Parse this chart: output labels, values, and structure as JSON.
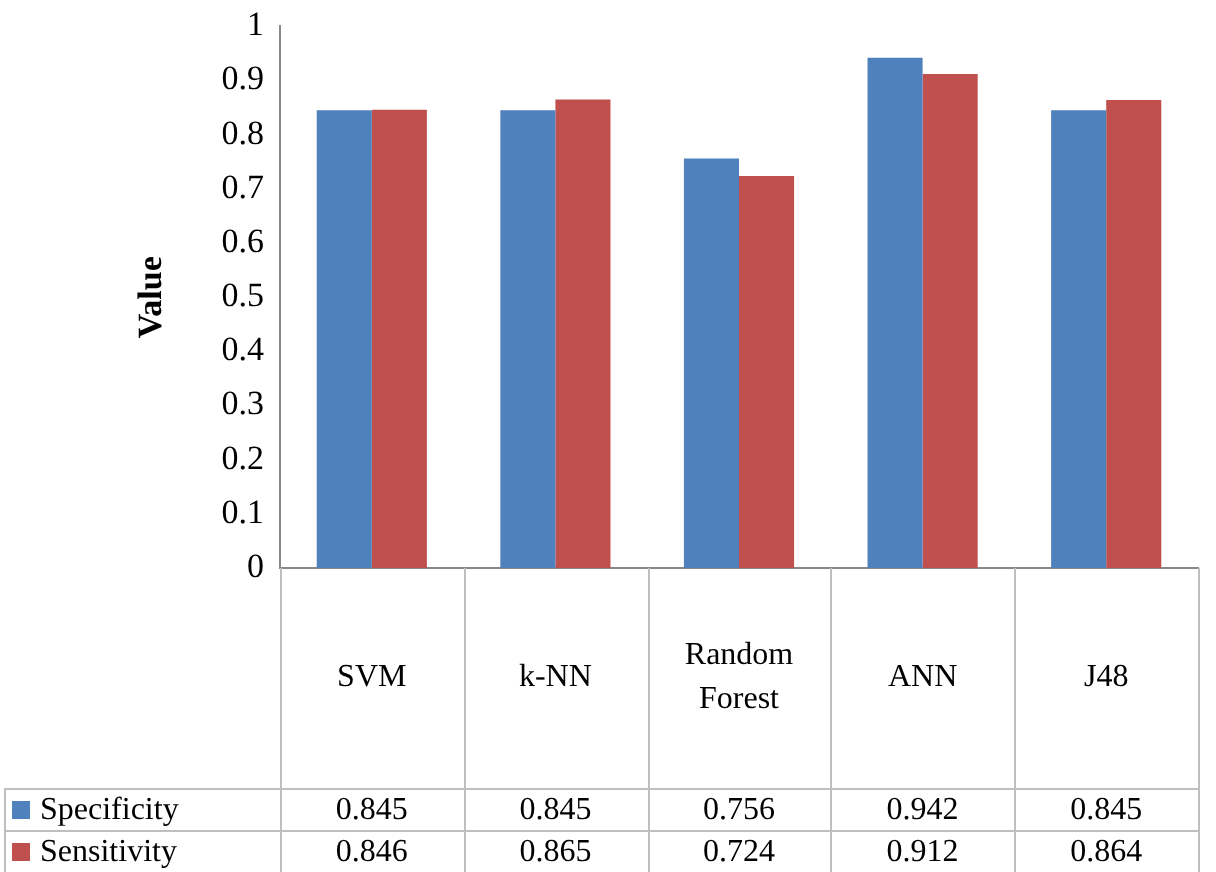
{
  "chart_data": {
    "type": "bar",
    "ylabel": "Value",
    "categories": [
      "SVM",
      "k-NN",
      "Random Forest",
      "ANN",
      "J48"
    ],
    "series": [
      {
        "name": "Specificity",
        "color": "#4f81bd",
        "values": [
          0.845,
          0.845,
          0.756,
          0.942,
          0.845
        ]
      },
      {
        "name": "Sensitivity",
        "color": "#c0504d",
        "values": [
          0.846,
          0.865,
          0.724,
          0.912,
          0.864
        ]
      }
    ],
    "ylim": [
      0,
      1
    ],
    "yticks": [
      0,
      0.1,
      0.2,
      0.3,
      0.4,
      0.5,
      0.6,
      0.7,
      0.8,
      0.9,
      1
    ],
    "grid": false,
    "legend": "bottom",
    "data_labels": true
  }
}
